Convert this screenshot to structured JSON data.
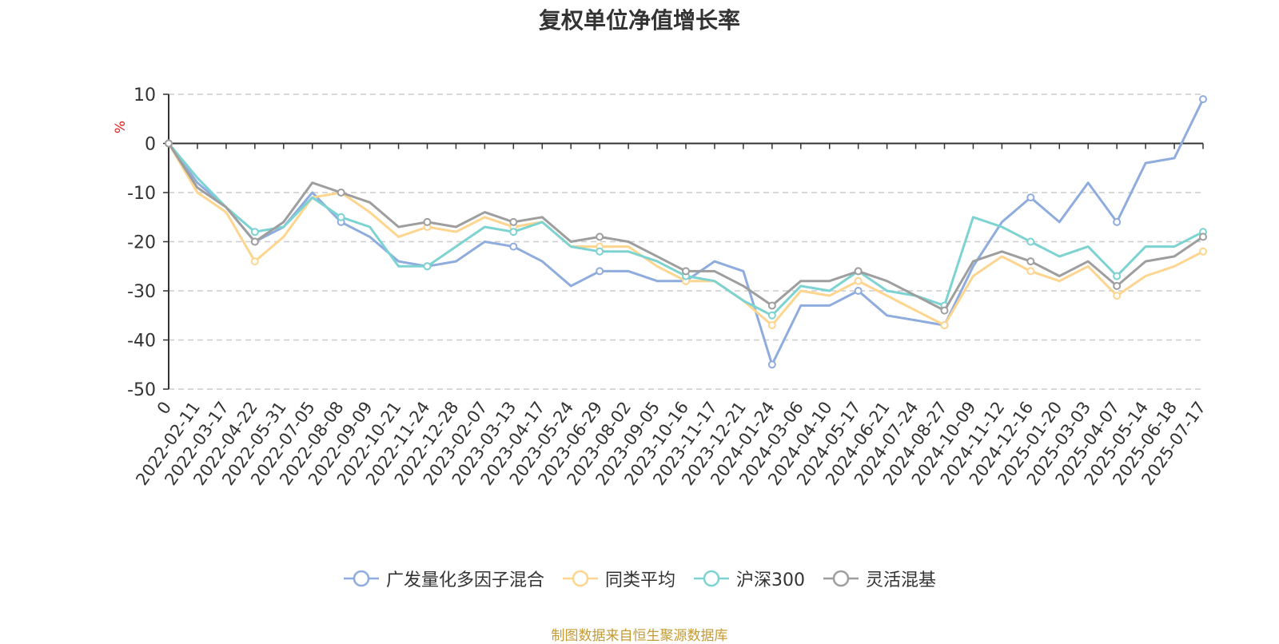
{
  "chart_data": {
    "type": "line",
    "title": "复权单位净值增长率",
    "ylabel": "%",
    "ylim": [
      -50,
      10
    ],
    "yticks": [
      10,
      0,
      -10,
      -20,
      -30,
      -40,
      -50
    ],
    "grid": true,
    "legend_position": "bottom",
    "source_note": "制图数据来自恒生聚源数据库",
    "x_tick_labels": [
      "0",
      "2022-02-11",
      "2022-03-17",
      "2022-04-22",
      "2022-05-31",
      "2022-07-05",
      "2022-08-08",
      "2022-09-09",
      "2022-10-21",
      "2022-11-24",
      "2022-12-28",
      "2023-02-07",
      "2023-03-13",
      "2023-04-17",
      "2023-05-24",
      "2023-06-29",
      "2023-08-02",
      "2023-09-05",
      "2023-10-16",
      "2023-11-17",
      "2023-12-21",
      "2024-01-24",
      "2024-03-06",
      "2024-04-10",
      "2024-05-17",
      "2024-06-21",
      "2024-07-24",
      "2024-08-27",
      "2024-10-09",
      "2024-11-12",
      "2024-12-16",
      "2025-01-20",
      "2025-03-03",
      "2025-04-07",
      "2025-05-14",
      "2025-06-18",
      "2025-07-17"
    ],
    "x": [
      "0",
      "2022-02-11",
      "2022-03-17",
      "2022-04-22",
      "2022-05-31",
      "2022-07-05",
      "2022-08-08",
      "2022-09-09",
      "2022-10-21",
      "2022-11-24",
      "2022-12-28",
      "2023-02-07",
      "2023-03-13",
      "2023-04-17",
      "2023-05-24",
      "2023-06-29",
      "2023-08-02",
      "2023-09-05",
      "2023-10-16",
      "2023-11-17",
      "2023-12-21",
      "2024-01-24",
      "2024-03-06",
      "2024-04-10",
      "2024-05-17",
      "2024-06-21",
      "2024-07-24",
      "2024-08-27",
      "2024-10-09",
      "2024-11-12",
      "2024-12-16",
      "2025-01-20",
      "2025-03-03",
      "2025-04-07",
      "2025-05-14",
      "2025-06-18",
      "2025-07-17"
    ],
    "series": [
      {
        "name": "广发量化多因子混合",
        "color": "#8eacdd",
        "values": [
          0,
          -8,
          -13,
          -20,
          -17,
          -10,
          -16,
          -19,
          -24,
          -25,
          -24,
          -20,
          -21,
          -24,
          -29,
          -26,
          -26,
          -28,
          -28,
          -24,
          -26,
          -45,
          -33,
          -33,
          -30,
          -35,
          -36,
          -37,
          -25,
          -16,
          -11,
          -16,
          -8,
          -16,
          -4,
          -3,
          9
        ]
      },
      {
        "name": "同类平均",
        "color": "#fdd58f",
        "values": [
          0,
          -10,
          -14,
          -24,
          -19,
          -11,
          -10,
          -14,
          -19,
          -17,
          -18,
          -15,
          -17,
          -16,
          -21,
          -21,
          -21,
          -25,
          -28,
          -28,
          -32,
          -37,
          -30,
          -31,
          -28,
          -31,
          -34,
          -37,
          -27,
          -23,
          -26,
          -28,
          -25,
          -31,
          -27,
          -25,
          -22
        ]
      },
      {
        "name": "沪深300",
        "color": "#7dd3d1",
        "values": [
          0,
          -7,
          -13,
          -18,
          -17,
          -11,
          -15,
          -17,
          -25,
          -25,
          -21,
          -17,
          -18,
          -16,
          -21,
          -22,
          -22,
          -24,
          -27,
          -28,
          -32,
          -35,
          -29,
          -30,
          -26,
          -30,
          -31,
          -33,
          -15,
          -17,
          -20,
          -23,
          -21,
          -27,
          -21,
          -21,
          -18
        ]
      },
      {
        "name": "灵活混基",
        "color": "#9e9e9e",
        "values": [
          0,
          -9,
          -13,
          -20,
          -16,
          -8,
          -10,
          -12,
          -17,
          -16,
          -17,
          -14,
          -16,
          -15,
          -20,
          -19,
          -20,
          -23,
          -26,
          -26,
          -29,
          -33,
          -28,
          -28,
          -26,
          -28,
          -31,
          -34,
          -24,
          -22,
          -24,
          -27,
          -24,
          -29,
          -24,
          -23,
          -19
        ]
      }
    ]
  }
}
